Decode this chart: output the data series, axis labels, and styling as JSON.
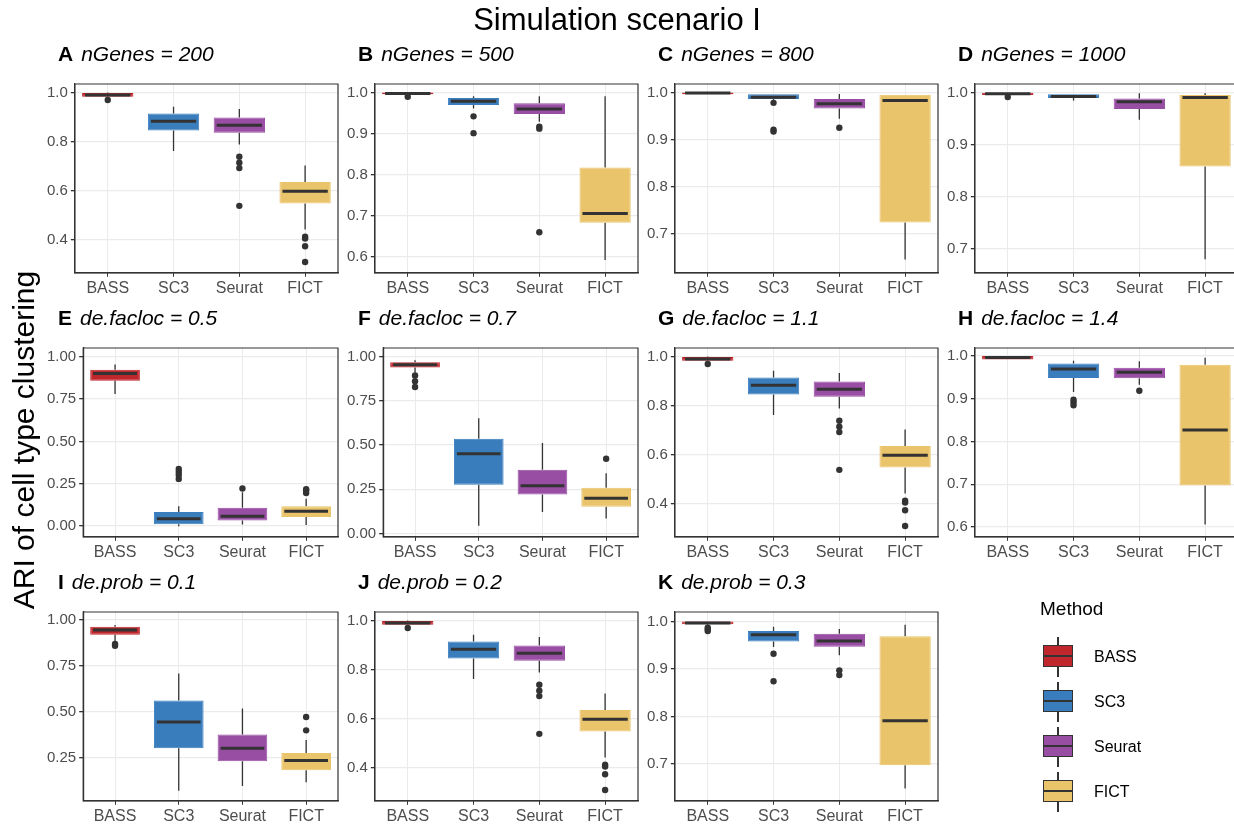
{
  "chart_data": [
    {
      "type": "box",
      "title": "A nGenes = 200",
      "categories": [
        "BASS",
        "SC3",
        "Seurat",
        "FICT"
      ],
      "colors": [
        "#c0272d",
        "#3a7dbd",
        "#984ea3",
        "#e9c46a"
      ],
      "ylim": [
        0.265,
        1.035
      ],
      "yticks": [
        0.4,
        0.6,
        0.8,
        {
          "value": 1,
          "label": "1.0"
        }
      ],
      "grid": true,
      "boxes": [
        {
          "low": 0.983,
          "q1": 0.983,
          "median": 0.99,
          "q3": 0.998,
          "high": 1.0,
          "outliers": [
            0.97
          ]
        },
        {
          "low": 0.762,
          "q1": 0.845,
          "median": 0.883,
          "q3": 0.915,
          "high": 0.942
        },
        {
          "low": 0.788,
          "q1": 0.836,
          "median": 0.867,
          "q3": 0.898,
          "high": 0.933,
          "outliers": [
            0.738,
            0.714,
            0.692,
            0.538
          ]
        },
        {
          "low": 0.442,
          "q1": 0.548,
          "median": 0.598,
          "q3": 0.635,
          "high": 0.703,
          "outliers": [
            0.412,
            0.405,
            0.373,
            0.309
          ]
        }
      ]
    },
    {
      "type": "box",
      "title": "B nGenes = 500",
      "categories": [
        "BASS",
        "SC3",
        "Seurat",
        "FICT"
      ],
      "colors": [
        "#c0272d",
        "#3a7dbd",
        "#984ea3",
        "#e9c46a"
      ],
      "ylim": [
        0.56,
        1.021
      ],
      "yticks": [
        0.6,
        0.7,
        0.8,
        0.9,
        {
          "value": 1,
          "label": "1.0"
        }
      ],
      "grid": true,
      "boxes": [
        {
          "low": 0.995,
          "q1": 0.996,
          "median": 0.998,
          "q3": 1.0,
          "high": 1.0,
          "outliers": [
            0.99
          ]
        },
        {
          "low": 0.961,
          "q1": 0.97,
          "median": 0.979,
          "q3": 0.987,
          "high": 0.991,
          "outliers": [
            0.942,
            0.901
          ]
        },
        {
          "low": 0.929,
          "q1": 0.948,
          "median": 0.96,
          "q3": 0.974,
          "high": 0.991,
          "outliers": [
            0.917,
            0.912,
            0.659
          ]
        },
        {
          "low": 0.591,
          "q1": 0.682,
          "median": 0.705,
          "q3": 0.817,
          "high": 0.991
        }
      ]
    },
    {
      "type": "box",
      "title": "C nGenes = 800",
      "categories": [
        "BASS",
        "SC3",
        "Seurat",
        "FICT"
      ],
      "colors": [
        "#c0272d",
        "#3a7dbd",
        "#984ea3",
        "#e9c46a"
      ],
      "ylim": [
        0.617,
        1.018
      ],
      "yticks": [
        0.7,
        0.8,
        0.9,
        {
          "value": 1,
          "label": "1.0"
        }
      ],
      "grid": true,
      "boxes": [
        {
          "low": 0.996,
          "q1": 0.996,
          "median": 0.999,
          "q3": 1.0,
          "high": 1.0
        },
        {
          "low": 0.982,
          "q1": 0.986,
          "median": 0.99,
          "q3": 0.996,
          "high": 0.996,
          "outliers": [
            0.978,
            0.921,
            0.917
          ]
        },
        {
          "low": 0.944,
          "q1": 0.966,
          "median": 0.976,
          "q3": 0.986,
          "high": 0.997,
          "outliers": [
            0.925
          ]
        },
        {
          "low": 0.645,
          "q1": 0.724,
          "median": 0.983,
          "q3": 0.995,
          "high": 0.995
        }
      ]
    },
    {
      "type": "box",
      "title": "D nGenes = 1000",
      "categories": [
        "BASS",
        "SC3",
        "Seurat",
        "FICT"
      ],
      "colors": [
        "#c0272d",
        "#3a7dbd",
        "#984ea3",
        "#e9c46a"
      ],
      "ylim": [
        0.653,
        1.017
      ],
      "yticks": [
        0.7,
        0.8,
        0.9,
        {
          "value": 1,
          "label": "1.0"
        }
      ],
      "grid": true,
      "boxes": [
        {
          "low": 0.996,
          "q1": 0.996,
          "median": 0.998,
          "q3": 1.0,
          "high": 1.0,
          "outliers": [
            0.992
          ]
        },
        {
          "low": 0.985,
          "q1": 0.99,
          "median": 0.993,
          "q3": 0.997,
          "high": 0.997
        },
        {
          "low": 0.948,
          "q1": 0.969,
          "median": 0.983,
          "q3": 0.989,
          "high": 0.999
        },
        {
          "low": 0.679,
          "q1": 0.858,
          "median": 0.991,
          "q3": 0.996,
          "high": 0.999
        }
      ]
    },
    {
      "type": "box",
      "title": "E de.facloc = 0.5",
      "categories": [
        "BASS",
        "SC3",
        "Seurat",
        "FICT"
      ],
      "colors": [
        "#c0272d",
        "#3a7dbd",
        "#984ea3",
        "#e9c46a"
      ],
      "ylim": [
        -0.063,
        1.052
      ],
      "yticks": [
        {
          "value": 0,
          "label": "0.00"
        },
        0.25,
        {
          "value": 0.5,
          "label": "0.50"
        },
        0.75,
        {
          "value": 1,
          "label": "1.00"
        }
      ],
      "grid": true,
      "boxes": [
        {
          "low": 0.78,
          "q1": 0.859,
          "median": 0.902,
          "q3": 0.923,
          "high": 0.955
        },
        {
          "low": 0.0,
          "q1": 0.011,
          "median": 0.043,
          "q3": 0.084,
          "high": 0.118,
          "outliers": [
            0.338,
            0.32,
            0.302,
            0.279
          ]
        },
        {
          "low": 0.009,
          "q1": 0.034,
          "median": 0.059,
          "q3": 0.109,
          "high": 0.2,
          "outliers": [
            0.222
          ]
        },
        {
          "low": 0.007,
          "q1": 0.054,
          "median": 0.088,
          "q3": 0.118,
          "high": 0.161,
          "outliers": [
            0.218,
            0.211,
            0.195
          ]
        }
      ]
    },
    {
      "type": "box",
      "title": "F de.facloc = 0.7",
      "categories": [
        "BASS",
        "SC3",
        "Seurat",
        "FICT"
      ],
      "colors": [
        "#c0272d",
        "#3a7dbd",
        "#984ea3",
        "#e9c46a"
      ],
      "ylim": [
        -0.019,
        1.05
      ],
      "yticks": [
        {
          "value": 0,
          "label": "0.00"
        },
        0.25,
        {
          "value": 0.5,
          "label": "0.50"
        },
        0.75,
        {
          "value": 1,
          "label": "1.00"
        }
      ],
      "grid": true,
      "boxes": [
        {
          "low": 0.91,
          "q1": 0.94,
          "median": 0.955,
          "q3": 0.97,
          "high": 0.981,
          "outliers": [
            0.894,
            0.862,
            0.829
          ]
        },
        {
          "low": 0.043,
          "q1": 0.276,
          "median": 0.451,
          "q3": 0.536,
          "high": 0.652
        },
        {
          "low": 0.121,
          "q1": 0.22,
          "median": 0.27,
          "q3": 0.361,
          "high": 0.512
        },
        {
          "low": 0.084,
          "q1": 0.151,
          "median": 0.199,
          "q3": 0.259,
          "high": 0.341,
          "outliers": [
            0.423
          ]
        }
      ]
    },
    {
      "type": "box",
      "title": "G de.facloc = 1.1",
      "categories": [
        "BASS",
        "SC3",
        "Seurat",
        "FICT"
      ],
      "colors": [
        "#c0272d",
        "#3a7dbd",
        "#984ea3",
        "#e9c46a"
      ],
      "ylim": [
        0.265,
        1.035
      ],
      "yticks": [
        0.4,
        0.6,
        0.8,
        {
          "value": 1,
          "label": "1.0"
        }
      ],
      "grid": true,
      "boxes": [
        {
          "low": 0.983,
          "q1": 0.983,
          "median": 0.99,
          "q3": 0.998,
          "high": 1.0,
          "outliers": [
            0.97
          ]
        },
        {
          "low": 0.762,
          "q1": 0.845,
          "median": 0.883,
          "q3": 0.915,
          "high": 0.942
        },
        {
          "low": 0.788,
          "q1": 0.836,
          "median": 0.867,
          "q3": 0.898,
          "high": 0.933,
          "outliers": [
            0.738,
            0.714,
            0.692,
            0.538
          ]
        },
        {
          "low": 0.442,
          "q1": 0.548,
          "median": 0.598,
          "q3": 0.635,
          "high": 0.703,
          "outliers": [
            0.412,
            0.405,
            0.373,
            0.309
          ]
        }
      ]
    },
    {
      "type": "box",
      "title": "H de.facloc = 1.4",
      "categories": [
        "BASS",
        "SC3",
        "Seurat",
        "FICT"
      ],
      "colors": [
        "#c0272d",
        "#3a7dbd",
        "#984ea3",
        "#e9c46a"
      ],
      "ylim": [
        0.577,
        1.019
      ],
      "yticks": [
        0.6,
        0.7,
        0.8,
        0.9,
        {
          "value": 1,
          "label": "1.0"
        }
      ],
      "grid": true,
      "boxes": [
        {
          "low": 0.992,
          "q1": 0.992,
          "median": 0.997,
          "q3": 1.0,
          "high": 1.0
        },
        {
          "low": 0.916,
          "q1": 0.949,
          "median": 0.97,
          "q3": 0.983,
          "high": 0.989,
          "outliers": [
            0.898,
            0.892,
            0.885
          ]
        },
        {
          "low": 0.933,
          "q1": 0.948,
          "median": 0.962,
          "q3": 0.973,
          "high": 0.988,
          "outliers": [
            0.919
          ]
        },
        {
          "low": 0.606,
          "q1": 0.697,
          "median": 0.827,
          "q3": 0.98,
          "high": 0.996
        }
      ]
    },
    {
      "type": "box",
      "title": "I de.prob = 0.1",
      "categories": [
        "BASS",
        "SC3",
        "Seurat",
        "FICT"
      ],
      "colors": [
        "#c0272d",
        "#3a7dbd",
        "#984ea3",
        "#e9c46a"
      ],
      "ylim": [
        0.015,
        1.044
      ],
      "yticks": [
        0.25,
        {
          "value": 0.5,
          "label": "0.50"
        },
        0.75,
        {
          "value": 1,
          "label": "1.00"
        }
      ],
      "grid": true,
      "boxes": [
        {
          "low": 0.883,
          "q1": 0.92,
          "median": 0.946,
          "q3": 0.964,
          "high": 0.973,
          "outliers": [
            0.87,
            0.86
          ]
        },
        {
          "low": 0.07,
          "q1": 0.302,
          "median": 0.445,
          "q3": 0.562,
          "high": 0.709
        },
        {
          "low": 0.095,
          "q1": 0.231,
          "median": 0.302,
          "q3": 0.376,
          "high": 0.518
        },
        {
          "low": 0.116,
          "q1": 0.181,
          "median": 0.235,
          "q3": 0.275,
          "high": 0.346,
          "outliers": [
            0.472,
            0.399
          ]
        }
      ]
    },
    {
      "type": "box",
      "title": "J de.prob = 0.2",
      "categories": [
        "BASS",
        "SC3",
        "Seurat",
        "FICT"
      ],
      "colors": [
        "#c0272d",
        "#3a7dbd",
        "#984ea3",
        "#e9c46a"
      ],
      "ylim": [
        0.265,
        1.035
      ],
      "yticks": [
        0.4,
        0.6,
        0.8,
        {
          "value": 1,
          "label": "1.0"
        }
      ],
      "grid": true,
      "boxes": [
        {
          "low": 0.983,
          "q1": 0.983,
          "median": 0.99,
          "q3": 0.998,
          "high": 1.0,
          "outliers": [
            0.97
          ]
        },
        {
          "low": 0.762,
          "q1": 0.845,
          "median": 0.883,
          "q3": 0.915,
          "high": 0.942
        },
        {
          "low": 0.788,
          "q1": 0.836,
          "median": 0.867,
          "q3": 0.898,
          "high": 0.933,
          "outliers": [
            0.738,
            0.714,
            0.692,
            0.538
          ]
        },
        {
          "low": 0.442,
          "q1": 0.548,
          "median": 0.598,
          "q3": 0.635,
          "high": 0.703,
          "outliers": [
            0.412,
            0.405,
            0.373,
            0.309
          ]
        }
      ]
    },
    {
      "type": "box",
      "title": "K de.prob = 0.3",
      "categories": [
        "BASS",
        "SC3",
        "Seurat",
        "FICT"
      ],
      "colors": [
        "#c0272d",
        "#3a7dbd",
        "#984ea3",
        "#e9c46a"
      ],
      "ylim": [
        0.622,
        1.02
      ],
      "yticks": [
        0.7,
        0.8,
        0.9,
        {
          "value": 1,
          "label": "1.0"
        }
      ],
      "grid": true,
      "boxes": [
        {
          "low": 0.99,
          "q1": 0.994,
          "median": 0.997,
          "q3": 1.0,
          "high": 1.0,
          "outliers": [
            0.987,
            0.983,
            0.98
          ]
        },
        {
          "low": 0.946,
          "q1": 0.958,
          "median": 0.972,
          "q3": 0.98,
          "high": 0.989,
          "outliers": [
            0.932,
            0.874
          ]
        },
        {
          "low": 0.929,
          "q1": 0.947,
          "median": 0.959,
          "q3": 0.974,
          "high": 0.984,
          "outliers": [
            0.897,
            0.887
          ]
        },
        {
          "low": 0.648,
          "q1": 0.697,
          "median": 0.791,
          "q3": 0.969,
          "high": 0.993
        }
      ]
    },
    {
      "type": "other",
      "title": "Simulation scenario I",
      "ylabel": "ARI of cell type clustering",
      "legend_title": "Method",
      "legend": "right",
      "series": [
        {
          "name": "BASS",
          "color": "#c0272d"
        },
        {
          "name": "SC3",
          "color": "#3a7dbd"
        },
        {
          "name": "Seurat",
          "color": "#984ea3"
        },
        {
          "name": "FICT",
          "color": "#e9c46a"
        }
      ]
    }
  ]
}
